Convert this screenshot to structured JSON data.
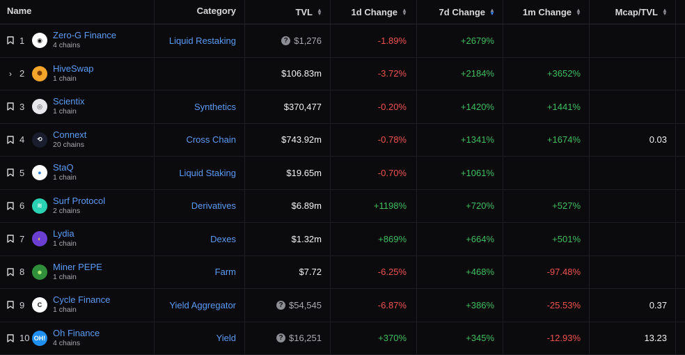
{
  "headers": {
    "name": "Name",
    "category": "Category",
    "tvl": "TVL",
    "change_1d": "1d Change",
    "change_7d": "7d Change",
    "change_1m": "1m Change",
    "mcap_tvl": "Mcap/TVL"
  },
  "rows": [
    {
      "rank": "1",
      "name": "Zero-G Finance",
      "chains": "4 chains",
      "category": "Liquid Restaking",
      "tvl": "$1,276",
      "tvl_uncertain": true,
      "d1": "-1.89%",
      "d7": "+2679%",
      "m1": "",
      "mcap": ""
    },
    {
      "rank": "2",
      "name": "HiveSwap",
      "chains": "1 chain",
      "category": "",
      "tvl": "$106.83m",
      "tvl_uncertain": false,
      "d1": "-3.72%",
      "d7": "+2184%",
      "m1": "+3652%",
      "mcap": ""
    },
    {
      "rank": "3",
      "name": "Scientix",
      "chains": "1 chain",
      "category": "Synthetics",
      "tvl": "$370,477",
      "tvl_uncertain": false,
      "d1": "-0.20%",
      "d7": "+1420%",
      "m1": "+1441%",
      "mcap": ""
    },
    {
      "rank": "4",
      "name": "Connext",
      "chains": "20 chains",
      "category": "Cross Chain",
      "tvl": "$743.92m",
      "tvl_uncertain": false,
      "d1": "-0.78%",
      "d7": "+1341%",
      "m1": "+1674%",
      "mcap": "0.03"
    },
    {
      "rank": "5",
      "name": "StaQ",
      "chains": "1 chain",
      "category": "Liquid Staking",
      "tvl": "$19.65m",
      "tvl_uncertain": false,
      "d1": "-0.70%",
      "d7": "+1061%",
      "m1": "",
      "mcap": ""
    },
    {
      "rank": "6",
      "name": "Surf Protocol",
      "chains": "2 chains",
      "category": "Derivatives",
      "tvl": "$6.89m",
      "tvl_uncertain": false,
      "d1": "+1198%",
      "d7": "+720%",
      "m1": "+527%",
      "mcap": ""
    },
    {
      "rank": "7",
      "name": "Lydia",
      "chains": "1 chain",
      "category": "Dexes",
      "tvl": "$1.32m",
      "tvl_uncertain": false,
      "d1": "+869%",
      "d7": "+664%",
      "m1": "+501%",
      "mcap": ""
    },
    {
      "rank": "8",
      "name": "Miner PEPE",
      "chains": "1 chain",
      "category": "Farm",
      "tvl": "$7.72",
      "tvl_uncertain": false,
      "d1": "-6.25%",
      "d7": "+468%",
      "m1": "-97.48%",
      "mcap": ""
    },
    {
      "rank": "9",
      "name": "Cycle Finance",
      "chains": "1 chain",
      "category": "Yield Aggregator",
      "tvl": "$54,545",
      "tvl_uncertain": true,
      "d1": "-6.87%",
      "d7": "+386%",
      "m1": "-25.53%",
      "mcap": "0.37"
    },
    {
      "rank": "10",
      "name": "Oh Finance",
      "chains": "4 chains",
      "category": "Yield",
      "tvl": "$16,251",
      "tvl_uncertain": true,
      "d1": "+370%",
      "d7": "+345%",
      "m1": "-12.93%",
      "mcap": "13.23"
    }
  ],
  "icons": {
    "bookmark": "bookmark-icon",
    "expand": "chevron-right-icon",
    "question": "question-icon",
    "sort": "sort-icon"
  },
  "colors": {
    "positive": "#3fbf5f",
    "negative": "#f0524f",
    "link": "#5b9cf6",
    "background": "#0b0b0d",
    "sort_active": "#3b82f6"
  }
}
